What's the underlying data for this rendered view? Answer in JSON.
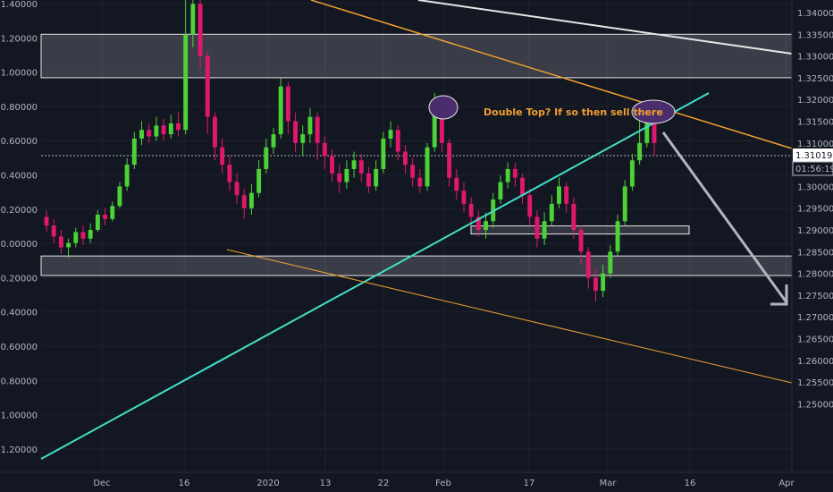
{
  "chart_data": {
    "type": "candlestick",
    "title": "",
    "xlabel": "",
    "ylabel": "",
    "grid": true,
    "left_axis": {
      "range": [
        -1.3,
        1.4
      ],
      "ticks": [
        "1.40000",
        "1.20000",
        "1.00000",
        "0.80000",
        "0.60000",
        "0.40000",
        "0.20000",
        "0.00000",
        "-0.20000",
        "-0.40000",
        "-0.60000",
        "-0.80000",
        "-1.00000",
        "-1.20000"
      ]
    },
    "right_axis": {
      "range": [
        1.245,
        1.343
      ],
      "ticks": [
        "1.34000",
        "1.33500",
        "1.33000",
        "1.32500",
        "1.32000",
        "1.31500",
        "1.31000",
        "1.30500",
        "1.30000",
        "1.29500",
        "1.29000",
        "1.28500",
        "1.28000",
        "1.27500",
        "1.27000",
        "1.26500",
        "1.26000",
        "1.25500",
        "1.25000"
      ]
    },
    "x_ticks": [
      "Dec",
      "16",
      "2020",
      "13",
      "22",
      "Feb",
      "17",
      "Mar",
      "16",
      "Apr"
    ],
    "price_label": "1.31019",
    "countdown_label": "01:56:19",
    "annotation": "Double Top? If so then sell there",
    "zones": [
      {
        "from": 1.325,
        "to": 1.335
      },
      {
        "from": 1.2795,
        "to": 1.284
      },
      {
        "from": 1.2895,
        "to": 1.2905
      }
    ],
    "candles": [
      [
        1.293,
        1.291,
        1.2945,
        1.2895
      ],
      [
        1.291,
        1.2885,
        1.2925,
        1.287
      ],
      [
        1.2885,
        1.286,
        1.29,
        1.2845
      ],
      [
        1.286,
        1.287,
        1.288,
        1.2835
      ],
      [
        1.287,
        1.2895,
        1.2905,
        1.286
      ],
      [
        1.2895,
        1.288,
        1.291,
        1.2865
      ],
      [
        1.288,
        1.29,
        1.2915,
        1.287
      ],
      [
        1.29,
        1.2935,
        1.2945,
        1.2895
      ],
      [
        1.2935,
        1.2925,
        1.295,
        1.291
      ],
      [
        1.2925,
        1.2955,
        1.2965,
        1.292
      ],
      [
        1.2955,
        1.3,
        1.301,
        1.295
      ],
      [
        1.3,
        1.305,
        1.3065,
        1.299
      ],
      [
        1.305,
        1.311,
        1.3125,
        1.304
      ],
      [
        1.311,
        1.313,
        1.315,
        1.3095
      ],
      [
        1.313,
        1.3115,
        1.3145,
        1.31
      ],
      [
        1.3115,
        1.314,
        1.316,
        1.3105
      ],
      [
        1.314,
        1.312,
        1.3155,
        1.3105
      ],
      [
        1.312,
        1.3145,
        1.3165,
        1.311
      ],
      [
        1.3145,
        1.313,
        1.317,
        1.3115
      ],
      [
        1.313,
        1.335,
        1.346,
        1.312
      ],
      [
        1.335,
        1.342,
        1.3455,
        1.332
      ],
      [
        1.342,
        1.33,
        1.343,
        1.327
      ],
      [
        1.33,
        1.316,
        1.331,
        1.312
      ],
      [
        1.316,
        1.309,
        1.317,
        1.306
      ],
      [
        1.309,
        1.305,
        1.311,
        1.303
      ],
      [
        1.305,
        1.301,
        1.307,
        1.299
      ],
      [
        1.301,
        1.298,
        1.303,
        1.296
      ],
      [
        1.298,
        1.295,
        1.2995,
        1.2925
      ],
      [
        1.295,
        1.2985,
        1.3005,
        1.2935
      ],
      [
        1.2985,
        1.304,
        1.306,
        1.2975
      ],
      [
        1.304,
        1.309,
        1.311,
        1.303
      ],
      [
        1.309,
        1.312,
        1.3135,
        1.3075
      ],
      [
        1.312,
        1.323,
        1.325,
        1.311
      ],
      [
        1.323,
        1.315,
        1.324,
        1.312
      ],
      [
        1.315,
        1.31,
        1.317,
        1.308
      ],
      [
        1.31,
        1.312,
        1.314,
        1.307
      ],
      [
        1.312,
        1.316,
        1.318,
        1.31
      ],
      [
        1.316,
        1.31,
        1.317,
        1.306
      ],
      [
        1.31,
        1.307,
        1.3115,
        1.304
      ],
      [
        1.307,
        1.303,
        1.3085,
        1.301
      ],
      [
        1.303,
        1.301,
        1.305,
        1.2985
      ],
      [
        1.301,
        1.304,
        1.306,
        1.2995
      ],
      [
        1.304,
        1.306,
        1.308,
        1.302
      ],
      [
        1.306,
        1.303,
        1.3075,
        1.301
      ],
      [
        1.303,
        1.3,
        1.3045,
        1.2985
      ],
      [
        1.3,
        1.304,
        1.306,
        1.299
      ],
      [
        1.304,
        1.311,
        1.3125,
        1.303
      ],
      [
        1.311,
        1.313,
        1.315,
        1.309
      ],
      [
        1.313,
        1.308,
        1.314,
        1.306
      ],
      [
        1.308,
        1.305,
        1.3095,
        1.303
      ],
      [
        1.305,
        1.302,
        1.3065,
        1.3
      ],
      [
        1.302,
        1.3,
        1.304,
        1.2985
      ],
      [
        1.3,
        1.309,
        1.31,
        1.299
      ],
      [
        1.309,
        1.32,
        1.3215,
        1.308
      ],
      [
        1.32,
        1.31,
        1.321,
        1.308
      ],
      [
        1.31,
        1.302,
        1.311,
        1.3
      ],
      [
        1.302,
        1.299,
        1.304,
        1.297
      ],
      [
        1.299,
        1.296,
        1.301,
        1.294
      ],
      [
        1.296,
        1.293,
        1.2975,
        1.291
      ],
      [
        1.293,
        1.29,
        1.2945,
        1.2885
      ],
      [
        1.29,
        1.292,
        1.294,
        1.288
      ],
      [
        1.292,
        1.297,
        1.2985,
        1.2905
      ],
      [
        1.297,
        1.301,
        1.3025,
        1.296
      ],
      [
        1.301,
        1.304,
        1.3055,
        1.2995
      ],
      [
        1.304,
        1.302,
        1.3055,
        1.3
      ],
      [
        1.302,
        1.298,
        1.303,
        1.296
      ],
      [
        1.298,
        1.293,
        1.2995,
        1.291
      ],
      [
        1.293,
        1.288,
        1.2945,
        1.286
      ],
      [
        1.288,
        1.292,
        1.294,
        1.2865
      ],
      [
        1.292,
        1.296,
        1.298,
        1.291
      ],
      [
        1.296,
        1.3,
        1.302,
        1.295
      ],
      [
        1.3,
        1.296,
        1.301,
        1.294
      ],
      [
        1.296,
        1.29,
        1.2975,
        1.288
      ],
      [
        1.29,
        1.285,
        1.291,
        1.282
      ],
      [
        1.285,
        1.279,
        1.286,
        1.2765
      ],
      [
        1.279,
        1.276,
        1.281,
        1.2735
      ],
      [
        1.276,
        1.28,
        1.282,
        1.2745
      ],
      [
        1.28,
        1.285,
        1.2865,
        1.279
      ],
      [
        1.285,
        1.292,
        1.2935,
        1.284
      ],
      [
        1.292,
        1.3,
        1.3015,
        1.291
      ],
      [
        1.3,
        1.306,
        1.3075,
        1.299
      ],
      [
        1.306,
        1.31,
        1.315,
        1.305
      ],
      [
        1.31,
        1.315,
        1.3165,
        1.309
      ],
      [
        1.315,
        1.31,
        1.3155,
        1.307
      ]
    ]
  }
}
